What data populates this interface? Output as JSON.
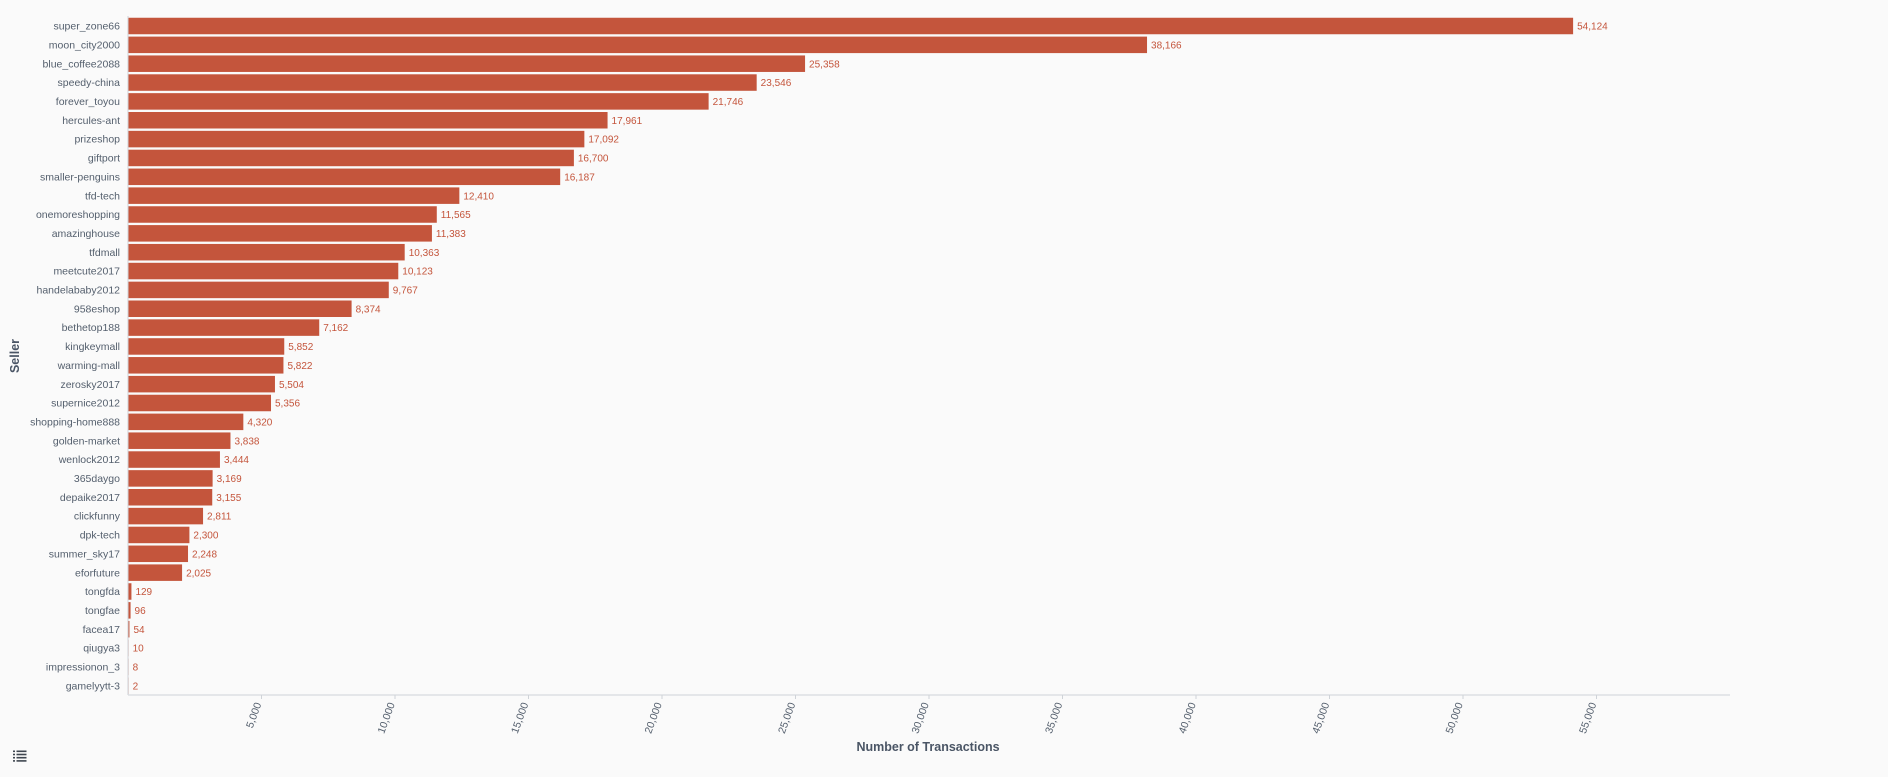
{
  "chart_data": {
    "type": "bar",
    "orientation": "horizontal",
    "title": "",
    "xlabel": "Number of Transactions",
    "ylabel": "Seller",
    "xlim": [
      0,
      60000
    ],
    "x_ticks": [
      5000,
      10000,
      15000,
      20000,
      25000,
      30000,
      35000,
      40000,
      45000,
      50000,
      55000
    ],
    "x_tick_labels": [
      "5,000",
      "10,000",
      "15,000",
      "20,000",
      "25,000",
      "30,000",
      "35,000",
      "40,000",
      "45,000",
      "50,000",
      "55,000"
    ],
    "grid": false,
    "bar_color": "#c4553c",
    "categories": [
      "super_zone66",
      "moon_city2000",
      "blue_coffee2088",
      "speedy-china",
      "forever_toyou",
      "hercules-ant",
      "prizeshop",
      "giftport",
      "smaller-penguins",
      "tfd-tech",
      "onemoreshopping",
      "amazinghouse",
      "tfdmall",
      "meetcute2017",
      "handelababy2012",
      "958eshop",
      "bethetop188",
      "kingkeymall",
      "warming-mall",
      "zerosky2017",
      "supernice2012",
      "shopping-home888",
      "golden-market",
      "wenlock2012",
      "365daygo",
      "depaike2017",
      "clickfunny",
      "dpk-tech",
      "summer_sky17",
      "eforfuture",
      "tongfda",
      "tongfae",
      "facea17",
      "qiugya3",
      "impressionon_3",
      "gamelyytt-3"
    ],
    "values": [
      54124,
      38166,
      25358,
      23546,
      21746,
      17961,
      17092,
      16700,
      16187,
      12410,
      11565,
      11383,
      10363,
      10123,
      9767,
      8374,
      7162,
      5852,
      5822,
      5504,
      5356,
      4320,
      3838,
      3444,
      3169,
      3155,
      2811,
      2300,
      2248,
      2025,
      129,
      96,
      54,
      10,
      8,
      2
    ],
    "value_labels": [
      "54,124",
      "38,166",
      "25,358",
      "23,546",
      "21,746",
      "17,961",
      "17,092",
      "16,700",
      "16,187",
      "12,410",
      "11,565",
      "11,383",
      "10,363",
      "10,123",
      "9,767",
      "8,374",
      "7,162",
      "5,852",
      "5,822",
      "5,504",
      "5,356",
      "4,320",
      "3,838",
      "3,444",
      "3,169",
      "3,155",
      "2,811",
      "2,300",
      "2,248",
      "2,025",
      "129",
      "96",
      "54",
      "10",
      "8",
      "2"
    ]
  },
  "toolbar": {
    "icon": "list-icon"
  }
}
